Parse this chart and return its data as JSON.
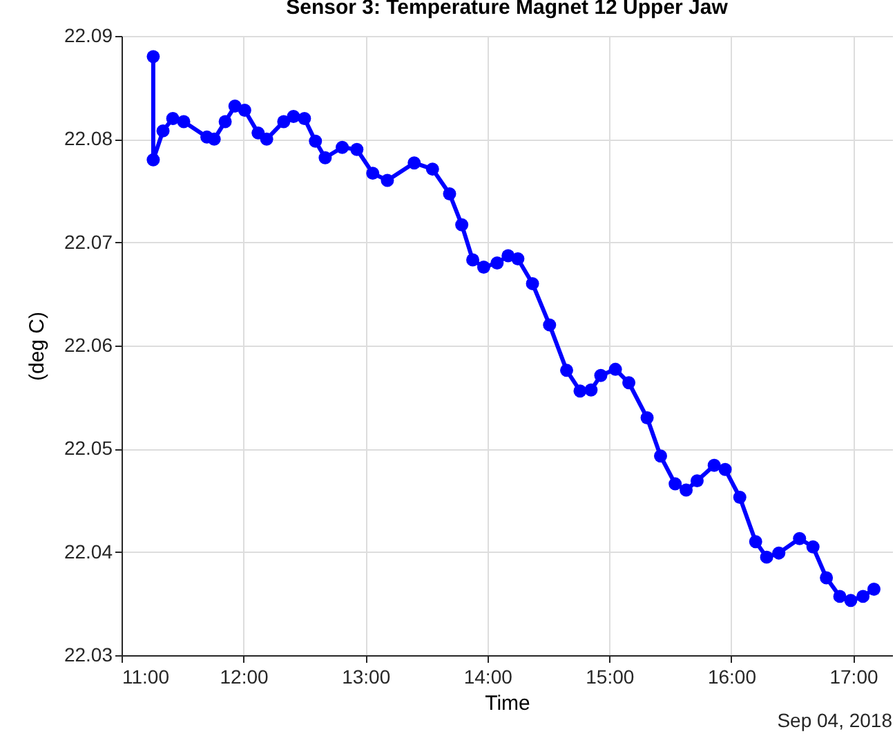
{
  "chart_data": {
    "type": "line",
    "title": "Sensor 3: Temperature Magnet 12 Upper Jaw",
    "xlabel": "Time",
    "ylabel": "(deg C)",
    "annotations": [
      "Sep 04, 2018"
    ],
    "x": [
      11.26,
      11.26,
      11.34,
      11.42,
      11.51,
      11.7,
      11.76,
      11.85,
      11.93,
      12.01,
      12.12,
      12.19,
      12.33,
      12.41,
      12.5,
      12.59,
      12.67,
      12.81,
      12.93,
      13.06,
      13.18,
      13.4,
      13.55,
      13.69,
      13.79,
      13.88,
      13.97,
      14.08,
      14.17,
      14.25,
      14.37,
      14.51,
      14.65,
      14.76,
      14.85,
      14.93,
      15.05,
      15.16,
      15.31,
      15.42,
      15.54,
      15.63,
      15.72,
      15.86,
      15.95,
      16.07,
      16.2,
      16.29,
      16.39,
      16.56,
      16.67,
      16.78,
      16.89,
      16.98,
      17.08,
      17.17
    ],
    "series": [
      {
        "color": "#0000ff",
        "values": [
          22.088,
          22.078,
          22.0808,
          22.082,
          22.0817,
          22.0802,
          22.08,
          22.0817,
          22.0832,
          22.0828,
          22.0806,
          22.08,
          22.0817,
          22.0822,
          22.082,
          22.0798,
          22.0782,
          22.0792,
          22.079,
          22.0767,
          22.076,
          22.0777,
          22.0771,
          22.0747,
          22.0717,
          22.0683,
          22.0676,
          22.068,
          22.0687,
          22.0684,
          22.066,
          22.062,
          22.0576,
          22.0556,
          22.0557,
          22.0571,
          22.0577,
          22.0564,
          22.053,
          22.0493,
          22.0466,
          22.046,
          22.0469,
          22.0484,
          22.048,
          22.0453,
          22.041,
          22.0395,
          22.0399,
          22.0413,
          22.0405,
          22.0375,
          22.0357,
          22.0353,
          22.0357,
          22.0364
        ]
      }
    ],
    "xlim": [
      11,
      17.32
    ],
    "xticks": [
      {
        "value": 11,
        "label": "11:00"
      },
      {
        "value": 12,
        "label": "12:00"
      },
      {
        "value": 13,
        "label": "13:00"
      },
      {
        "value": 14,
        "label": "14:00"
      },
      {
        "value": 15,
        "label": "15:00"
      },
      {
        "value": 16,
        "label": "16:00"
      },
      {
        "value": 17,
        "label": "17:00"
      }
    ],
    "ylim": [
      22.03,
      22.09
    ],
    "yticks": [
      22.03,
      22.04,
      22.05,
      22.06,
      22.07,
      22.08,
      22.09
    ],
    "grid": true,
    "marker": "circle",
    "line_style": "solid"
  }
}
